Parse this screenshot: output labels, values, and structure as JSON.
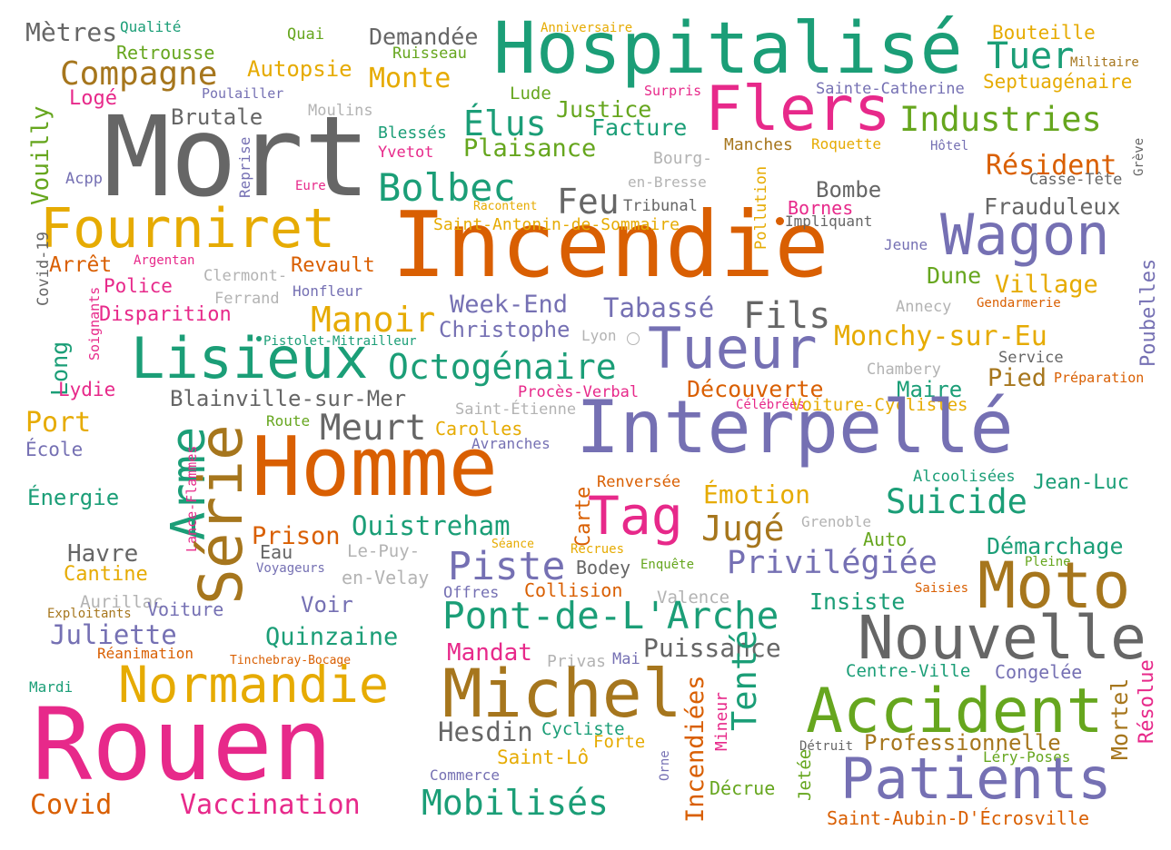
{
  "palette": {
    "teal": "#1b9e77",
    "orange": "#d95f02",
    "purple": "#7570b3",
    "pink": "#e7298a",
    "green": "#66a61e",
    "gold": "#e6ab02",
    "brown": "#a6761d",
    "gray": "#666666",
    "lightgray": "#b3b3b3"
  },
  "words": [
    {
      "text": "Mètres",
      "color": "gray"
    },
    {
      "text": "Qualité",
      "color": "teal"
    },
    {
      "text": "Quai",
      "color": "green"
    },
    {
      "text": "Demandée",
      "color": "gray"
    },
    {
      "text": "Anniversaire",
      "color": "gold"
    },
    {
      "text": "Hospitalisé",
      "color": "teal"
    },
    {
      "text": "Bouteille",
      "color": "gold"
    },
    {
      "text": "Retrousse",
      "color": "green"
    },
    {
      "text": "Ruisseau",
      "color": "green"
    },
    {
      "text": "Tuer",
      "color": "teal"
    },
    {
      "text": "Militaire",
      "color": "brown"
    },
    {
      "text": "Compagne",
      "color": "brown"
    },
    {
      "text": "Autopsie",
      "color": "gold"
    },
    {
      "text": "Monte",
      "color": "gold"
    },
    {
      "text": "Septuagénaire",
      "color": "gold"
    },
    {
      "text": "Logé",
      "color": "pink"
    },
    {
      "text": "Poulailler",
      "color": "purple"
    },
    {
      "text": "Lude",
      "color": "green"
    },
    {
      "text": "Surpris",
      "color": "pink"
    },
    {
      "text": "Flers",
      "color": "pink"
    },
    {
      "text": "Sainte-Catherine",
      "color": "purple"
    },
    {
      "text": "Brutale",
      "color": "gray"
    },
    {
      "text": "Moulins",
      "color": "lightgray"
    },
    {
      "text": "Justice",
      "color": "green"
    },
    {
      "text": "Industries",
      "color": "green"
    },
    {
      "text": "Mort",
      "color": "gray"
    },
    {
      "text": "Vouilly",
      "color": "green"
    },
    {
      "text": "Reprise",
      "color": "purple"
    },
    {
      "text": "Blessés",
      "color": "teal"
    },
    {
      "text": "Élus",
      "color": "teal"
    },
    {
      "text": "Facture",
      "color": "teal"
    },
    {
      "text": "Plaisance",
      "color": "green"
    },
    {
      "text": "Yvetot",
      "color": "pink"
    },
    {
      "text": "Manches",
      "color": "brown"
    },
    {
      "text": "Roquette",
      "color": "gold"
    },
    {
      "text": "Hôtel",
      "color": "purple"
    },
    {
      "text": "Grève",
      "color": "gray"
    },
    {
      "text": "Bourg-",
      "color": "lightgray"
    },
    {
      "text": "en-Bresse",
      "color": "lightgray"
    },
    {
      "text": "Résident",
      "color": "orange"
    },
    {
      "text": "Casse-Tête",
      "color": "gray"
    },
    {
      "text": "Acpp",
      "color": "purple"
    },
    {
      "text": "Eure",
      "color": "pink"
    },
    {
      "text": "Bolbec",
      "color": "teal"
    },
    {
      "text": "Pollution",
      "color": "gold"
    },
    {
      "text": "Bombe",
      "color": "gray"
    },
    {
      "text": "Feu",
      "color": "gray"
    },
    {
      "text": "Tribunal",
      "color": "gray"
    },
    {
      "text": "Racontent",
      "color": "gold"
    },
    {
      "text": "Bornes",
      "color": "pink"
    },
    {
      "text": "Frauduleux",
      "color": "gray"
    },
    {
      "text": "Fourniret",
      "color": "gold"
    },
    {
      "text": "Incendie",
      "color": "orange"
    },
    {
      "text": "Impliquant",
      "color": "gray"
    },
    {
      "text": "Covid-19",
      "color": "gray"
    },
    {
      "text": "Saint-Antonin-de-Sommaire",
      "color": "gold"
    },
    {
      "text": "Wagon",
      "color": "purple"
    },
    {
      "text": "Jeune",
      "color": "purple"
    },
    {
      "text": "Poubelles",
      "color": "purple"
    },
    {
      "text": "Arrêt",
      "color": "orange"
    },
    {
      "text": "Argentan",
      "color": "pink"
    },
    {
      "text": "Clermont-",
      "color": "lightgray"
    },
    {
      "text": "Revault",
      "color": "orange"
    },
    {
      "text": "Dune",
      "color": "green"
    },
    {
      "text": "Village",
      "color": "gold"
    },
    {
      "text": "Soignants",
      "color": "pink"
    },
    {
      "text": "Police",
      "color": "pink"
    },
    {
      "text": "Ferrand",
      "color": "lightgray"
    },
    {
      "text": "Honfleur",
      "color": "purple"
    },
    {
      "text": "Annecy",
      "color": "lightgray"
    },
    {
      "text": "Gendarmerie",
      "color": "orange"
    },
    {
      "text": "Disparition",
      "color": "pink"
    },
    {
      "text": "Manoir",
      "color": "gold"
    },
    {
      "text": "Week-End",
      "color": "purple"
    },
    {
      "text": "Tabassé",
      "color": "purple"
    },
    {
      "text": "Fils",
      "color": "gray"
    },
    {
      "text": "Christophe",
      "color": "purple"
    },
    {
      "text": "Lyon",
      "color": "lightgray"
    },
    {
      "text": "Monchy-sur-Eu",
      "color": "gold"
    },
    {
      "text": "Pistolet-Mitrailleur",
      "color": "teal"
    },
    {
      "text": "Lisieux",
      "color": "teal"
    },
    {
      "text": "Tueur",
      "color": "purple"
    },
    {
      "text": "Service",
      "color": "gray"
    },
    {
      "text": "Octogénaire",
      "color": "teal"
    },
    {
      "text": "Chambery",
      "color": "lightgray"
    },
    {
      "text": "Long",
      "color": "teal"
    },
    {
      "text": "Lydie",
      "color": "pink"
    },
    {
      "text": "Maire",
      "color": "teal"
    },
    {
      "text": "Pied",
      "color": "brown"
    },
    {
      "text": "Préparation",
      "color": "orange"
    },
    {
      "text": "Procès-Verbal",
      "color": "pink"
    },
    {
      "text": "Découverte",
      "color": "orange"
    },
    {
      "text": "Blainville-sur-Mer",
      "color": "gray"
    },
    {
      "text": "Célébrées",
      "color": "pink"
    },
    {
      "text": "Voiture-Cyclistes",
      "color": "gold"
    },
    {
      "text": "Port",
      "color": "gold"
    },
    {
      "text": "Arme",
      "color": "teal"
    },
    {
      "text": "Saint-Étienne",
      "color": "lightgray"
    },
    {
      "text": "Route",
      "color": "green"
    },
    {
      "text": "Meurt",
      "color": "gray"
    },
    {
      "text": "Carolles",
      "color": "gold"
    },
    {
      "text": "Interpellé",
      "color": "purple"
    },
    {
      "text": "École",
      "color": "purple"
    },
    {
      "text": "Lance-Flammes",
      "color": "pink"
    },
    {
      "text": "Série",
      "color": "brown"
    },
    {
      "text": "Homme",
      "color": "orange"
    },
    {
      "text": "Avranches",
      "color": "purple"
    },
    {
      "text": "Alcoolisées",
      "color": "teal"
    },
    {
      "text": "Jean-Luc",
      "color": "teal"
    },
    {
      "text": "Énergie",
      "color": "teal"
    },
    {
      "text": "Renversée",
      "color": "orange"
    },
    {
      "text": "Émotion",
      "color": "gold"
    },
    {
      "text": "Suicide",
      "color": "teal"
    },
    {
      "text": "Tag",
      "color": "pink"
    },
    {
      "text": "Carte",
      "color": "orange"
    },
    {
      "text": "Jugé",
      "color": "brown"
    },
    {
      "text": "Grenoble",
      "color": "lightgray"
    },
    {
      "text": "Ouistreham",
      "color": "teal"
    },
    {
      "text": "Prison",
      "color": "orange"
    },
    {
      "text": "Auto",
      "color": "green"
    },
    {
      "text": "Démarchage",
      "color": "teal"
    },
    {
      "text": "Havre",
      "color": "gray"
    },
    {
      "text": "Eau",
      "color": "gray"
    },
    {
      "text": "Séance",
      "color": "gold"
    },
    {
      "text": "Recrues",
      "color": "gold"
    },
    {
      "text": "Piste",
      "color": "purple"
    },
    {
      "text": "Privilégiée",
      "color": "purple"
    },
    {
      "text": "Pleine",
      "color": "green"
    },
    {
      "text": "Cantine",
      "color": "gold"
    },
    {
      "text": "Le-Puy-",
      "color": "lightgray"
    },
    {
      "text": "Voyageurs",
      "color": "purple"
    },
    {
      "text": "Bodey",
      "color": "gray"
    },
    {
      "text": "Enquête",
      "color": "green"
    },
    {
      "text": "Moto",
      "color": "brown"
    },
    {
      "text": "en-Velay",
      "color": "lightgray"
    },
    {
      "text": "Collision",
      "color": "orange"
    },
    {
      "text": "Saisies",
      "color": "orange"
    },
    {
      "text": "Aurillac",
      "color": "lightgray"
    },
    {
      "text": "Offres",
      "color": "purple"
    },
    {
      "text": "Valence",
      "color": "lightgray"
    },
    {
      "text": "Voir",
      "color": "purple"
    },
    {
      "text": "Insiste",
      "color": "teal"
    },
    {
      "text": "Exploitants",
      "color": "brown"
    },
    {
      "text": "Voiture",
      "color": "purple"
    },
    {
      "text": "Pont-de-L'Arche",
      "color": "teal"
    },
    {
      "text": "Quinzaine",
      "color": "teal"
    },
    {
      "text": "Nouvelle",
      "color": "gray"
    },
    {
      "text": "Juliette",
      "color": "purple"
    },
    {
      "text": "Puissance",
      "color": "gray"
    },
    {
      "text": "Réanimation",
      "color": "orange"
    },
    {
      "text": "Mandat",
      "color": "pink"
    },
    {
      "text": "Privas",
      "color": "lightgray"
    },
    {
      "text": "Mai",
      "color": "purple"
    },
    {
      "text": "Tinchebray-Bocage",
      "color": "orange"
    },
    {
      "text": "Tenté",
      "color": "teal"
    },
    {
      "text": "Centre-Ville",
      "color": "teal"
    },
    {
      "text": "Congelée",
      "color": "purple"
    },
    {
      "text": "Normandie",
      "color": "gold"
    },
    {
      "text": "Incendiées",
      "color": "orange"
    },
    {
      "text": "Mineur",
      "color": "pink"
    },
    {
      "text": "Mortel",
      "color": "brown"
    },
    {
      "text": "Résolue",
      "color": "pink"
    },
    {
      "text": "Mardi",
      "color": "teal"
    },
    {
      "text": "Michel",
      "color": "brown"
    },
    {
      "text": "Accident",
      "color": "green"
    },
    {
      "text": "Hesdin",
      "color": "gray"
    },
    {
      "text": "Cycliste",
      "color": "teal"
    },
    {
      "text": "Forte",
      "color": "gold"
    },
    {
      "text": "Détruit",
      "color": "gray"
    },
    {
      "text": "Professionnelle",
      "color": "brown"
    },
    {
      "text": "Rouen",
      "color": "pink"
    },
    {
      "text": "Saint-Lô",
      "color": "gold"
    },
    {
      "text": "Jetée",
      "color": "green"
    },
    {
      "text": "Léry-Poses",
      "color": "green"
    },
    {
      "text": "Orne",
      "color": "purple"
    },
    {
      "text": "Commerce",
      "color": "purple"
    },
    {
      "text": "Patients",
      "color": "purple"
    },
    {
      "text": "Décrue",
      "color": "green"
    },
    {
      "text": "Covid",
      "color": "orange"
    },
    {
      "text": "Vaccination",
      "color": "pink"
    },
    {
      "text": "Mobilisés",
      "color": "teal"
    },
    {
      "text": "Saint-Aubin-D'Écrosville",
      "color": "orange"
    }
  ]
}
